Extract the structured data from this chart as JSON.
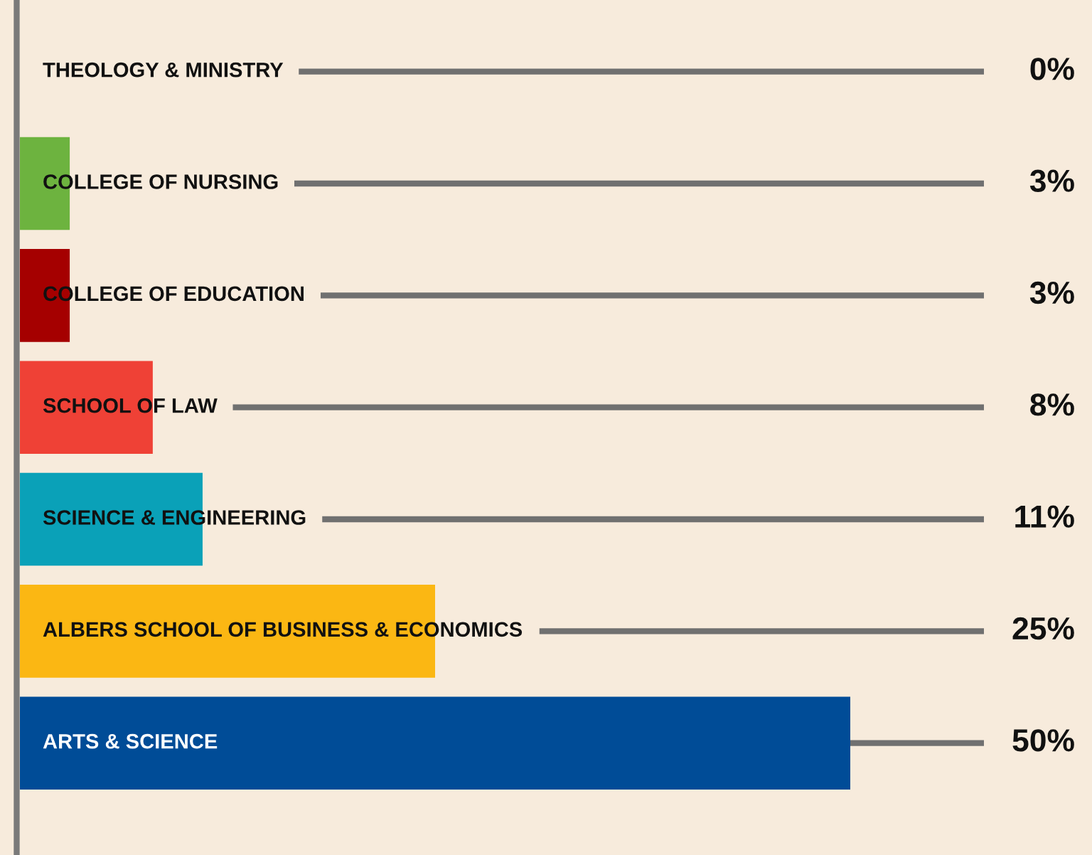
{
  "chart_data": {
    "type": "bar",
    "orientation": "horizontal",
    "categories": [
      "THEOLOGY & MINISTRY",
      "COLLEGE OF NURSING",
      "COLLEGE OF EDUCATION",
      "SCHOOL OF LAW",
      "SCIENCE & ENGINEERING",
      "ALBERS SCHOOL OF BUSINESS & ECONOMICS",
      "ARTS & SCIENCE"
    ],
    "values": [
      0,
      3,
      3,
      8,
      11,
      25,
      50
    ],
    "colors": [
      null,
      "#6db33f",
      "#a50000",
      "#ef4136",
      "#0aa1b8",
      "#fbb713",
      "#004c97"
    ],
    "value_labels": [
      "0%",
      "3%",
      "3%",
      "8%",
      "11%",
      "25%",
      "50%"
    ],
    "grid": "y",
    "legend": false
  }
}
